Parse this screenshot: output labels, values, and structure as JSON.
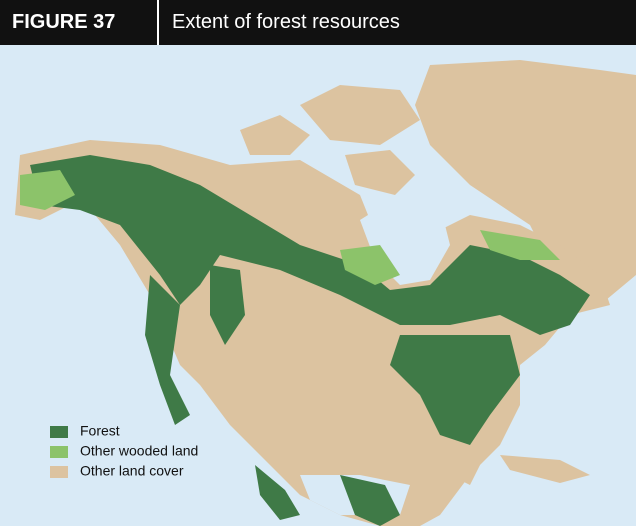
{
  "header": {
    "label": "FIGURE 37",
    "title": "Extent of forest resources"
  },
  "legend": {
    "items": [
      {
        "name": "Forest",
        "color": "#3f7a47"
      },
      {
        "name": "Other wooded land",
        "color": "#8cc36a"
      },
      {
        "name": "Other land cover",
        "color": "#dcc3a0"
      }
    ]
  }
}
